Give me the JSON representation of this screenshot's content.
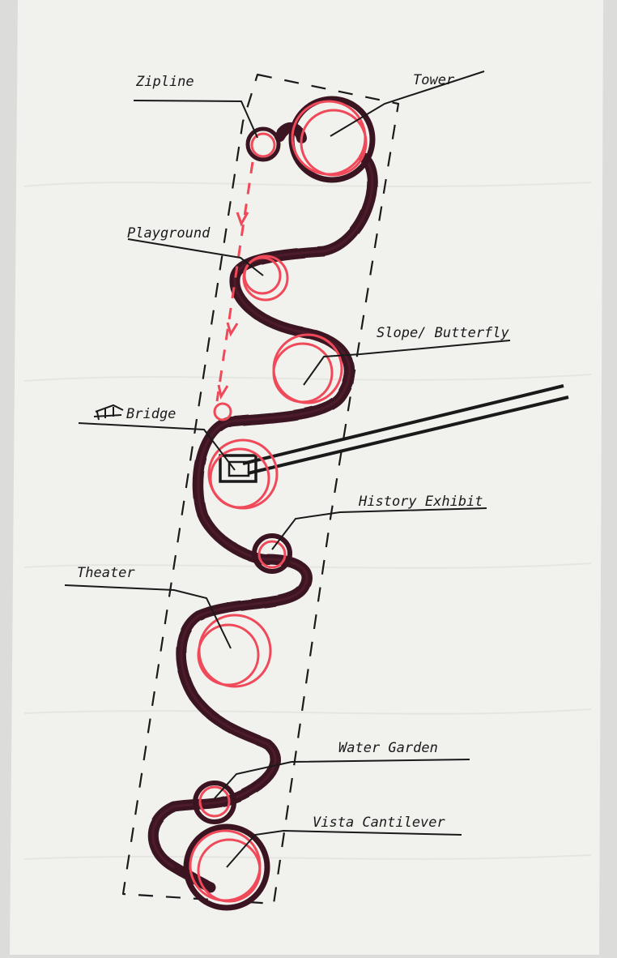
{
  "colors": {
    "background": "#dcdcda",
    "paper": "#f1f1ee",
    "ink": "#1a1a1a",
    "path": "#3a1420",
    "accent": "#f04a5a"
  },
  "labels": {
    "zipline": "Zipline",
    "tower": "Tower",
    "playground": "Playground",
    "slope_butterfly": "Slope/ Butterfly",
    "bridge": "Bridge",
    "history_exhibit": "History Exhibit",
    "theater": "Theater",
    "water_garden": "Water Garden",
    "vista_cantilever": "Vista Cantilever"
  },
  "icons": {
    "bridge_glyph": "bridge-sketch-icon"
  }
}
